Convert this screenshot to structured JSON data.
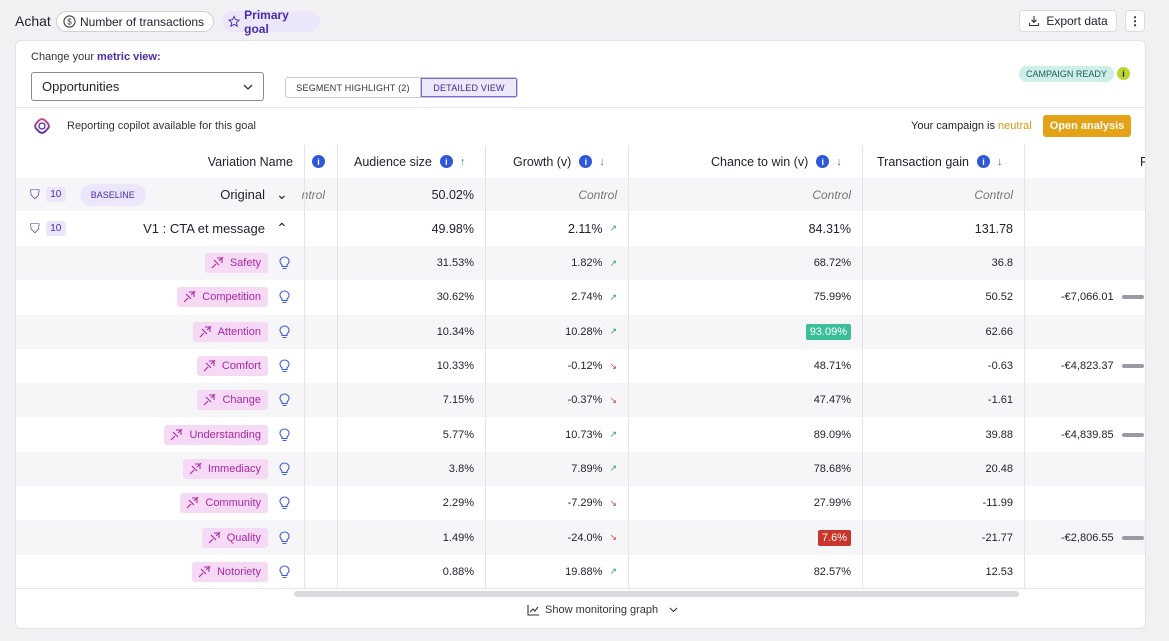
{
  "top": {
    "title": "Achat",
    "metric_label": "Number of transactions",
    "goal_label": "Primary goal",
    "export_label": "Export data",
    "more_label": "⋮"
  },
  "controls": {
    "metric_prefix": "Change your ",
    "metric_link": "metric view:",
    "metric_value": "Opportunities",
    "view_options": [
      "SEGMENT HIGHLIGHT (2)",
      "DETAILED VIEW"
    ],
    "selected_view": "DETAILED VIEW",
    "campaign_badge": "CAMPAIGN READY"
  },
  "copilot": {
    "text": "Reporting copilot available for this goal",
    "status_prefix": "Your campaign is ",
    "status_value": "neutral",
    "open_label": "Open analysis"
  },
  "table": {
    "headers": {
      "variation": "Variation Name",
      "audience": "Audience size",
      "growth": "Growth (v)",
      "chance": "Chance to win (v)",
      "gain": "Transaction gain",
      "next": "R"
    },
    "colors": {
      "green_highlight": "#3bbf9a",
      "red_highlight": "#c8352a",
      "up": "#2a9d73",
      "down": "#d0453a"
    },
    "baseline": {
      "count": "10",
      "badge": "BASELINE",
      "name": "Original",
      "clipped": "ntrol",
      "audience": "50.02%",
      "growth": "Control",
      "chance": "Control",
      "gain": "Control"
    },
    "variant": {
      "count": "10",
      "name": "V1 : CTA et message",
      "audience": "49.98%",
      "growth": "2.11%",
      "chance": "84.31%",
      "gain": "131.78"
    },
    "segments": [
      {
        "name": "Safety",
        "audience": "31.53%",
        "growth": "1.82%",
        "dir": "up",
        "chance": "68.72%",
        "hl": "",
        "gain": "36.8",
        "extra": ""
      },
      {
        "name": "Competition",
        "audience": "30.62%",
        "growth": "2.74%",
        "dir": "up",
        "chance": "75.99%",
        "hl": "",
        "gain": "50.52",
        "extra": "-€7,066.01"
      },
      {
        "name": "Attention",
        "audience": "10.34%",
        "growth": "10.28%",
        "dir": "up",
        "chance": "93.09%",
        "hl": "green",
        "gain": "62.66",
        "extra": ""
      },
      {
        "name": "Comfort",
        "audience": "10.33%",
        "growth": "-0.12%",
        "dir": "down",
        "chance": "48.71%",
        "hl": "",
        "gain": "-0.63",
        "extra": "-€4,823.37"
      },
      {
        "name": "Change",
        "audience": "7.15%",
        "growth": "-0.37%",
        "dir": "down",
        "chance": "47.47%",
        "hl": "",
        "gain": "-1.61",
        "extra": ""
      },
      {
        "name": "Understanding",
        "audience": "5.77%",
        "growth": "10.73%",
        "dir": "up",
        "chance": "89.09%",
        "hl": "",
        "gain": "39.88",
        "extra": "-€4,839.85"
      },
      {
        "name": "Immediacy",
        "audience": "3.8%",
        "growth": "7.89%",
        "dir": "up",
        "chance": "78.68%",
        "hl": "",
        "gain": "20.48",
        "extra": ""
      },
      {
        "name": "Community",
        "audience": "2.29%",
        "growth": "-7.29%",
        "dir": "down",
        "chance": "27.99%",
        "hl": "",
        "gain": "-11.99",
        "extra": ""
      },
      {
        "name": "Quality",
        "audience": "1.49%",
        "growth": "-24.0%",
        "dir": "down",
        "chance": "7.6%",
        "hl": "red",
        "gain": "-21.77",
        "extra": "-€2,806.55"
      },
      {
        "name": "Notoriety",
        "audience": "0.88%",
        "growth": "19.88%",
        "dir": "up",
        "chance": "82.57%",
        "hl": "",
        "gain": "12.53",
        "extra": ""
      }
    ]
  },
  "footer": {
    "monitor_label": "Show monitoring graph"
  }
}
